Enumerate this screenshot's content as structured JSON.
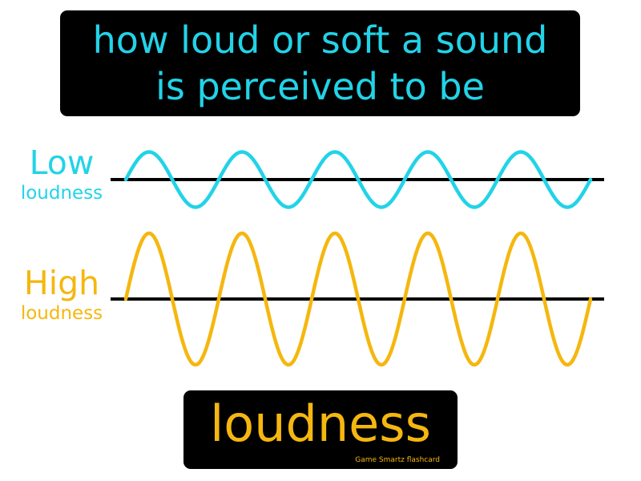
{
  "definition": {
    "line1": "how loud or soft a sound",
    "line2": "is perceived to be"
  },
  "low_wave": {
    "label_big": "Low",
    "label_small": "loudness",
    "color": "#22d3e8",
    "cycles": 5,
    "relative_amplitude": 0.42
  },
  "high_wave": {
    "label_big": "High",
    "label_small": "loudness",
    "color": "#f5b70f",
    "cycles": 5,
    "relative_amplitude": 1.0
  },
  "baseline_color": "#000000",
  "term": "loudness",
  "credit": "Game Smartz  flashcard"
}
